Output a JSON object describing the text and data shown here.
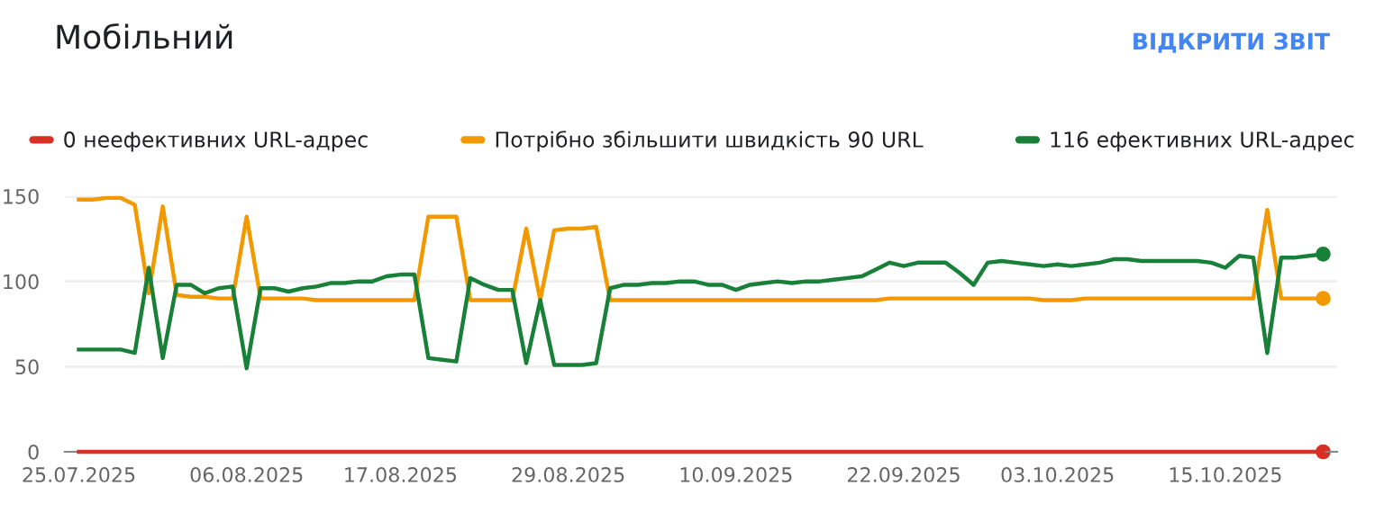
{
  "chart_data": {
    "type": "line",
    "title": "Мобільний",
    "annotations": [
      "ВІДКРИТИ ЗВІТ"
    ],
    "x": [
      "2025-07-25",
      "2025-07-26",
      "2025-07-27",
      "2025-07-28",
      "2025-07-29",
      "2025-07-30",
      "2025-07-31",
      "2025-08-01",
      "2025-08-02",
      "2025-08-03",
      "2025-08-04",
      "2025-08-05",
      "2025-08-06",
      "2025-08-07",
      "2025-08-08",
      "2025-08-09",
      "2025-08-10",
      "2025-08-11",
      "2025-08-12",
      "2025-08-13",
      "2025-08-14",
      "2025-08-15",
      "2025-08-16",
      "2025-08-17",
      "2025-08-18",
      "2025-08-19",
      "2025-08-20",
      "2025-08-21",
      "2025-08-22",
      "2025-08-23",
      "2025-08-24",
      "2025-08-25",
      "2025-08-26",
      "2025-08-27",
      "2025-08-28",
      "2025-08-29",
      "2025-08-30",
      "2025-08-31",
      "2025-09-01",
      "2025-09-02",
      "2025-09-03",
      "2025-09-04",
      "2025-09-05",
      "2025-09-06",
      "2025-09-07",
      "2025-09-08",
      "2025-09-09",
      "2025-09-10",
      "2025-09-11",
      "2025-09-12",
      "2025-09-13",
      "2025-09-14",
      "2025-09-15",
      "2025-09-16",
      "2025-09-17",
      "2025-09-18",
      "2025-09-19",
      "2025-09-20",
      "2025-09-21",
      "2025-09-22",
      "2025-09-23",
      "2025-09-24",
      "2025-09-25",
      "2025-09-26",
      "2025-09-27",
      "2025-09-28",
      "2025-09-29",
      "2025-09-30",
      "2025-10-01",
      "2025-10-02",
      "2025-10-03",
      "2025-10-04",
      "2025-10-05",
      "2025-10-06",
      "2025-10-07",
      "2025-10-08",
      "2025-10-09",
      "2025-10-10",
      "2025-10-11",
      "2025-10-12",
      "2025-10-13",
      "2025-10-14",
      "2025-10-15",
      "2025-10-16",
      "2025-10-17",
      "2025-10-18",
      "2025-10-19",
      "2025-10-20",
      "2025-10-21",
      "2025-10-22"
    ],
    "series": [
      {
        "name": "0 неефективних URL-адрес",
        "color": "#d93025",
        "values": [
          0,
          0,
          0,
          0,
          0,
          0,
          0,
          0,
          0,
          0,
          0,
          0,
          0,
          0,
          0,
          0,
          0,
          0,
          0,
          0,
          0,
          0,
          0,
          0,
          0,
          0,
          0,
          0,
          0,
          0,
          0,
          0,
          0,
          0,
          0,
          0,
          0,
          0,
          0,
          0,
          0,
          0,
          0,
          0,
          0,
          0,
          0,
          0,
          0,
          0,
          0,
          0,
          0,
          0,
          0,
          0,
          0,
          0,
          0,
          0,
          0,
          0,
          0,
          0,
          0,
          0,
          0,
          0,
          0,
          0,
          0,
          0,
          0,
          0,
          0,
          0,
          0,
          0,
          0,
          0,
          0,
          0,
          0,
          0,
          0,
          0,
          0,
          0,
          0,
          0
        ]
      },
      {
        "name": "Потрібно збільшити швидкість 90 URL",
        "color": "#f29900",
        "values": [
          148,
          148,
          149,
          149,
          145,
          93,
          144,
          92,
          91,
          91,
          90,
          90,
          138,
          90,
          90,
          90,
          90,
          89,
          89,
          89,
          89,
          89,
          89,
          89,
          89,
          138,
          138,
          138,
          89,
          89,
          89,
          89,
          131,
          89,
          130,
          131,
          131,
          132,
          89,
          89,
          89,
          89,
          89,
          89,
          89,
          89,
          89,
          89,
          89,
          89,
          89,
          89,
          89,
          89,
          89,
          89,
          89,
          89,
          90,
          90,
          90,
          90,
          90,
          90,
          90,
          90,
          90,
          90,
          90,
          89,
          89,
          89,
          90,
          90,
          90,
          90,
          90,
          90,
          90,
          90,
          90,
          90,
          90,
          90,
          90,
          142,
          90,
          90,
          90,
          90
        ]
      },
      {
        "name": "116 ефективних URL-адрес",
        "color": "#188038",
        "values": [
          60,
          60,
          60,
          60,
          58,
          108,
          55,
          98,
          98,
          93,
          96,
          97,
          49,
          96,
          96,
          94,
          96,
          97,
          99,
          99,
          100,
          100,
          103,
          104,
          104,
          55,
          54,
          53,
          102,
          98,
          95,
          95,
          52,
          89,
          51,
          51,
          51,
          52,
          96,
          98,
          98,
          99,
          99,
          100,
          100,
          98,
          98,
          95,
          98,
          99,
          100,
          99,
          100,
          100,
          101,
          102,
          103,
          107,
          111,
          109,
          111,
          111,
          111,
          105,
          98,
          111,
          112,
          111,
          110,
          109,
          110,
          109,
          110,
          111,
          113,
          113,
          112,
          112,
          112,
          112,
          112,
          111,
          108,
          115,
          114,
          58,
          114,
          114,
          115,
          116
        ]
      }
    ],
    "xlim": [
      "2025-07-24",
      "2025-10-23"
    ],
    "xticks": [
      {
        "value": "2025-07-25",
        "label": "25.07.2025"
      },
      {
        "value": "2025-08-06",
        "label": "06.08.2025"
      },
      {
        "value": "2025-08-17",
        "label": "17.08.2025"
      },
      {
        "value": "2025-08-29",
        "label": "29.08.2025"
      },
      {
        "value": "2025-09-10",
        "label": "10.09.2025"
      },
      {
        "value": "2025-09-22",
        "label": "22.09.2025"
      },
      {
        "value": "2025-10-03",
        "label": "03.10.2025"
      },
      {
        "value": "2025-10-15",
        "label": "15.10.2025"
      }
    ],
    "ylim": [
      0,
      150
    ],
    "yticks": [
      0,
      50,
      100,
      150
    ],
    "grid": "y",
    "legend": "top left"
  }
}
